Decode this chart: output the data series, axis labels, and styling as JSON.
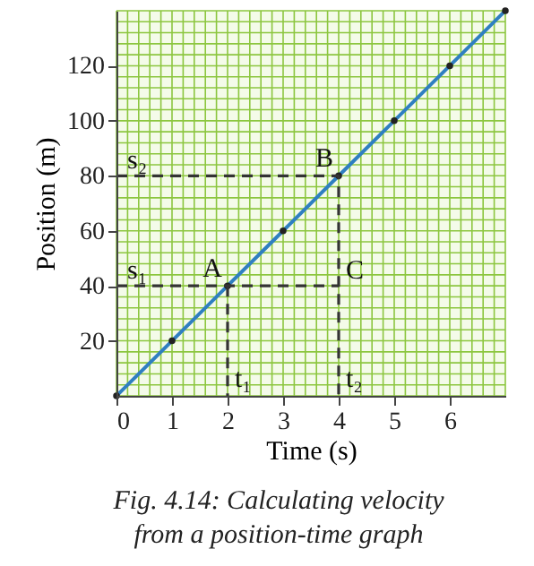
{
  "chart_data": {
    "type": "line",
    "xlabel": "Time (s)",
    "ylabel": "Position (m)",
    "xlim": [
      0,
      7
    ],
    "ylim": [
      0,
      140
    ],
    "xticks": [
      0,
      1,
      2,
      3,
      4,
      5,
      6
    ],
    "yticks": [
      20,
      40,
      60,
      80,
      100,
      120
    ],
    "grid": true,
    "marker": "circle",
    "series": [
      {
        "color": "#2f7fc1",
        "line_style": "solid",
        "x": [
          0,
          1,
          2,
          3,
          4,
          5,
          6,
          7
        ],
        "values": [
          0,
          20,
          40,
          60,
          80,
          100,
          120,
          140
        ]
      },
      {
        "color": "#333333",
        "type": "line",
        "line_style": "dashed",
        "marker": "none",
        "x": [
          0,
          4,
          4
        ],
        "values": [
          80,
          80,
          0
        ]
      },
      {
        "color": "#333333",
        "type": "line",
        "line_style": "dashed",
        "marker": "none",
        "x": [
          0,
          4
        ],
        "values": [
          40,
          40
        ]
      },
      {
        "color": "#333333",
        "type": "line",
        "line_style": "dashed",
        "marker": "none",
        "x": [
          2,
          2
        ],
        "values": [
          40,
          0
        ]
      }
    ],
    "annotations": [
      {
        "text": "A",
        "x": 2,
        "y": 40
      },
      {
        "text": "B",
        "x": 4,
        "y": 80
      },
      {
        "text": "C",
        "x": 4,
        "y": 40
      },
      {
        "text": "s₂",
        "x": 0,
        "y": 80
      },
      {
        "text": "s₁",
        "x": 0,
        "y": 40
      },
      {
        "text": "t₁",
        "x": 2,
        "y": 0
      },
      {
        "text": "t₂",
        "x": 4,
        "y": 0
      },
      "Fig. 4.14: Calculating velocity from a position-time graph"
    ]
  }
}
